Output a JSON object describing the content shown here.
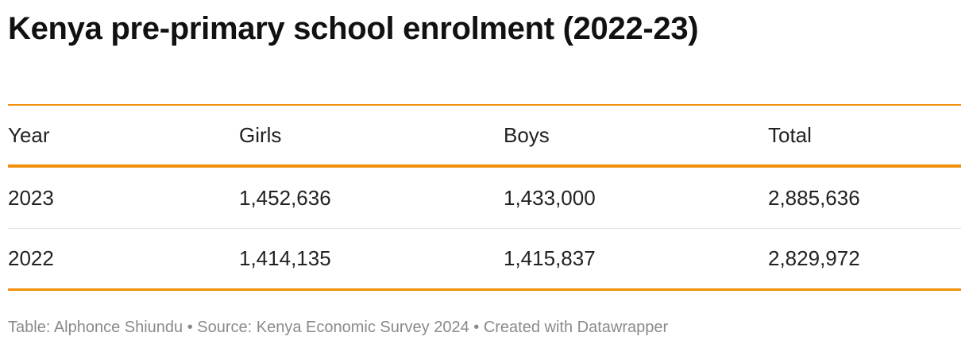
{
  "chart_data": {
    "type": "table",
    "title": "Kenya pre-primary school enrolment (2022-23)",
    "columns": [
      "Year",
      "Girls",
      "Boys",
      "Total"
    ],
    "rows": [
      [
        "2023",
        "1,452,636",
        "1,433,000",
        "2,885,636"
      ],
      [
        "2022",
        "1,414,135",
        "1,415,837",
        "2,829,972"
      ]
    ],
    "footer": "Table: Alphonce Shiundu • Source: Kenya Economic Survey 2024 • Created with Datawrapper"
  },
  "colors": {
    "accent": "#f0900c",
    "text": "#222222",
    "footer": "#8a8a8a"
  }
}
